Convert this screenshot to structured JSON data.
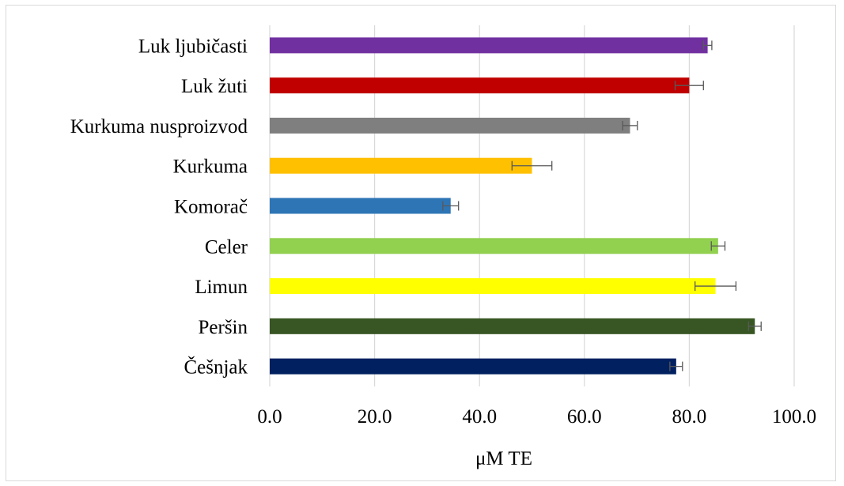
{
  "chart_data": {
    "type": "bar",
    "orientation": "horizontal",
    "title": "",
    "xlabel": "μM TE",
    "ylabel": "",
    "xlim": [
      0,
      100
    ],
    "x_ticks": [
      0,
      20,
      40,
      60,
      80,
      100
    ],
    "x_tick_labels": [
      "0.0",
      "20.0",
      "40.0",
      "60.0",
      "80.0",
      "100.0"
    ],
    "grid": "vertical",
    "legend": "none",
    "categories": [
      "Luk ljubičasti",
      "Luk žuti",
      "Kurkuma nusproizvod",
      "Kurkuma",
      "Komorač",
      "Celer",
      "Limun",
      "Peršin",
      "Češnjak"
    ],
    "values": [
      83.5,
      80.0,
      68.7,
      50.0,
      34.5,
      85.5,
      85.0,
      92.5,
      77.5
    ],
    "errors": [
      0.8,
      2.7,
      1.4,
      3.8,
      1.5,
      1.3,
      3.9,
      1.2,
      1.2
    ],
    "colors": [
      "#7030a0",
      "#c00000",
      "#7f7f7f",
      "#ffc000",
      "#2e75b6",
      "#92d050",
      "#ffff00",
      "#375623",
      "#002060"
    ]
  }
}
